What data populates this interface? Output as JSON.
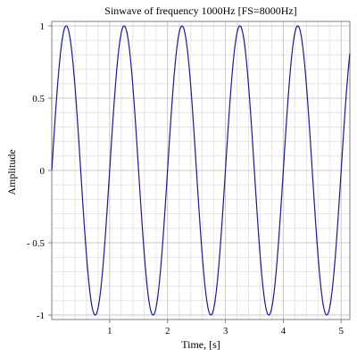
{
  "chart_data": {
    "type": "line",
    "title": "Sinwave of frequency 1000Hz [FS=8000Hz]",
    "xlabel": "Time, [s]",
    "ylabel": "Amplitude",
    "xlim": [
      0,
      5.15
    ],
    "ylim": [
      -1,
      1
    ],
    "x_ticks": [
      1,
      2,
      3,
      4,
      5
    ],
    "x_tick_labels": [
      "1",
      "2",
      "3",
      "4",
      "5"
    ],
    "y_ticks": [
      1,
      0.5,
      0,
      -0.5,
      -1
    ],
    "y_tick_labels": [
      "1",
      "0.5",
      "0",
      "- 0.5",
      "-1"
    ],
    "grid": true,
    "series": [
      {
        "function": "sin",
        "amplitude": 1,
        "cycles_per_x_unit": 1,
        "phase_offset": 0,
        "x_start": 0,
        "x_end": 5.15,
        "color": "#1a1a8c"
      }
    ]
  }
}
